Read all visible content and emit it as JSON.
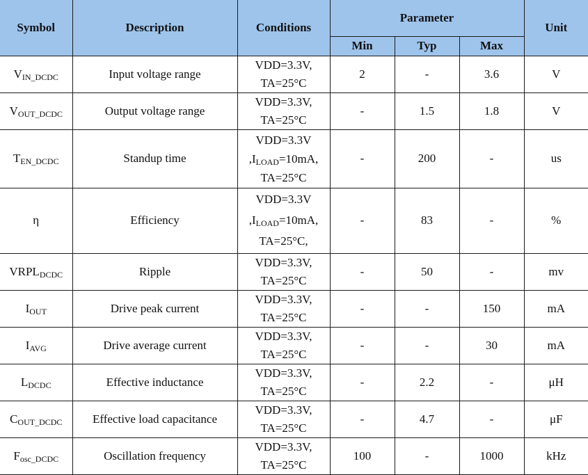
{
  "header": {
    "symbol": "Symbol",
    "description": "Description",
    "conditions": "Conditions",
    "parameter": "Parameter",
    "min": "Min",
    "typ": "Typ",
    "max": "Max",
    "unit": "Unit"
  },
  "rows": [
    {
      "sym": "V",
      "sym_sub": "IN_DCDC",
      "sym_tail": "",
      "desc": "Input voltage range",
      "cond": [
        "VDD=3.3V,",
        "TA=25°C"
      ],
      "min": "2",
      "typ": "-",
      "max": "3.6",
      "unit": "V"
    },
    {
      "sym": "V",
      "sym_sub": "OUT_DCDC",
      "sym_tail": "",
      "desc": "Output voltage range",
      "cond": [
        "VDD=3.3V,",
        "TA=25°C"
      ],
      "min": "-",
      "typ": "1.5",
      "max": "1.8",
      "unit": "V"
    },
    {
      "sym": "T",
      "sym_sub": "EN_DCDC",
      "sym_tail": "",
      "desc": "Standup time",
      "cond": [
        "VDD=3.3V",
        ",I",
        "LOAD",
        "=10mA,",
        "TA=25°C"
      ],
      "min": "-",
      "typ": "200",
      "max": "-",
      "unit": "us"
    },
    {
      "sym": "η",
      "sym_sub": "",
      "sym_tail": "",
      "desc": "Efficiency",
      "cond": [
        "VDD=3.3V",
        ",I",
        "LOAD",
        "=10mA,",
        "TA=25°C,"
      ],
      "min": "-",
      "typ": "83",
      "max": "-",
      "unit": "%"
    },
    {
      "sym": "VRPL",
      "sym_sub": "DCDC",
      "sym_tail": "",
      "desc": "Ripple",
      "cond": [
        "VDD=3.3V,",
        "TA=25°C"
      ],
      "min": "-",
      "typ": "50",
      "max": "-",
      "unit": "mv"
    },
    {
      "sym": "I",
      "sym_sub": "OUT",
      "sym_tail": "",
      "desc": "Drive peak current",
      "cond": [
        "VDD=3.3V,",
        "TA=25°C"
      ],
      "min": "-",
      "typ": "-",
      "max": "150",
      "unit": "mA"
    },
    {
      "sym": "I",
      "sym_sub": "AVG",
      "sym_tail": "",
      "desc": "Drive average current",
      "cond": [
        "VDD=3.3V,",
        "TA=25°C"
      ],
      "min": "-",
      "typ": "-",
      "max": "30",
      "unit": "mA"
    },
    {
      "sym": "L",
      "sym_sub": "DCDC",
      "sym_tail": "",
      "desc": "Effective inductance",
      "cond": [
        "VDD=3.3V,",
        "TA=25°C"
      ],
      "min": "-",
      "typ": "2.2",
      "max": "-",
      "unit": "μH"
    },
    {
      "sym": "C",
      "sym_sub": "OUT_DCDC",
      "sym_tail": "",
      "desc": "Effective load capacitance",
      "cond": [
        "VDD=3.3V,",
        "TA=25°C"
      ],
      "min": "-",
      "typ": "4.7",
      "max": "-",
      "unit": "μF"
    },
    {
      "sym": "F",
      "sym_sub": "osc_DCDC",
      "sym_tail": "",
      "desc": "Oscillation frequency",
      "cond": [
        "VDD=3.3V,",
        "TA=25°C"
      ],
      "min": "100",
      "typ": "-",
      "max": "1000",
      "unit": "kHz"
    }
  ]
}
